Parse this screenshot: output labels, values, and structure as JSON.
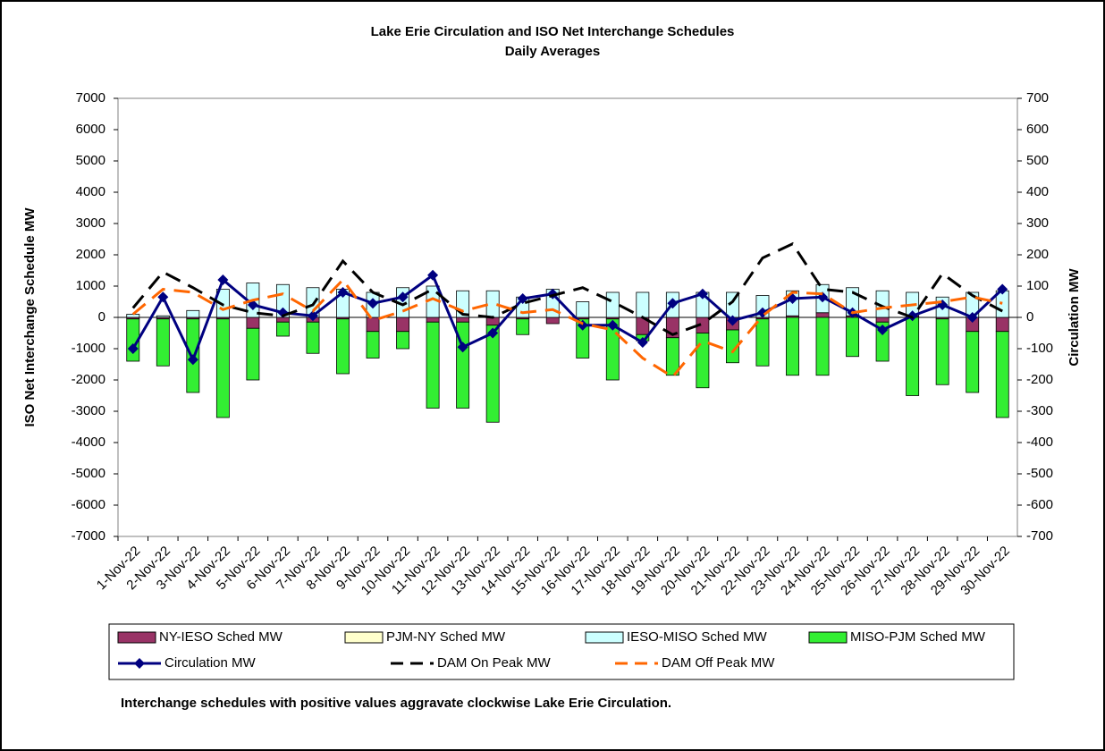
{
  "chart_data": {
    "type": "stacked-bar-line",
    "title": "Lake Erie Circulation and ISO Net Interchange Schedules",
    "subtitle": "Daily Averages",
    "y_label": "ISO Net Interchange Schedule MW",
    "y2_label": "Circulation MW",
    "note": "Interchange schedules with positive values aggravate clockwise Lake Erie Circulation.",
    "categories": [
      "1-Nov-22",
      "2-Nov-22",
      "3-Nov-22",
      "4-Nov-22",
      "5-Nov-22",
      "6-Nov-22",
      "7-Nov-22",
      "8-Nov-22",
      "9-Nov-22",
      "10-Nov-22",
      "11-Nov-22",
      "12-Nov-22",
      "13-Nov-22",
      "14-Nov-22",
      "15-Nov-22",
      "16-Nov-22",
      "17-Nov-22",
      "18-Nov-22",
      "19-Nov-22",
      "20-Nov-22",
      "21-Nov-22",
      "22-Nov-22",
      "23-Nov-22",
      "24-Nov-22",
      "25-Nov-22",
      "26-Nov-22",
      "27-Nov-22",
      "28-Nov-22",
      "29-Nov-22",
      "30-Nov-22"
    ],
    "ylim": [
      -7000,
      7000
    ],
    "yticks": [
      -7000,
      -6000,
      -5000,
      -4000,
      -3000,
      -2000,
      -1000,
      0,
      1000,
      2000,
      3000,
      4000,
      5000,
      6000,
      7000
    ],
    "y2lim": [
      -700,
      700
    ],
    "y2ticks": [
      -700,
      -600,
      -500,
      -400,
      -300,
      -200,
      -100,
      0,
      100,
      200,
      300,
      400,
      500,
      600,
      700
    ],
    "series": [
      {
        "name": "NY-IESO Sched MW",
        "kind": "bar",
        "color": "#993366",
        "values": [
          -50,
          -50,
          -50,
          -50,
          -350,
          -150,
          -150,
          -50,
          -450,
          -450,
          -150,
          -150,
          -250,
          -50,
          -200,
          -50,
          -50,
          -550,
          -650,
          -500,
          -400,
          -50,
          50,
          150,
          50,
          -150,
          50,
          -50,
          -450,
          -450
        ]
      },
      {
        "name": "PJM-NY Sched MW",
        "kind": "bar",
        "color": "#ffffcc",
        "values": [
          0,
          0,
          0,
          0,
          0,
          0,
          0,
          0,
          0,
          0,
          0,
          0,
          0,
          0,
          0,
          0,
          0,
          0,
          0,
          0,
          0,
          0,
          0,
          0,
          0,
          0,
          0,
          0,
          0,
          0
        ]
      },
      {
        "name": "IESO-MISO Sched MW",
        "kind": "bar",
        "color": "#ccffff",
        "values": [
          100,
          50,
          220,
          900,
          1100,
          1050,
          950,
          900,
          800,
          950,
          1000,
          850,
          850,
          650,
          900,
          500,
          800,
          800,
          800,
          800,
          800,
          700,
          800,
          900,
          900,
          850,
          750,
          650,
          800,
          850
        ]
      },
      {
        "name": "MISO-PJM Sched MW",
        "kind": "bar",
        "color": "#33ee33",
        "values": [
          -1350,
          -1500,
          -2350,
          -3150,
          -1650,
          -450,
          -1000,
          -1750,
          -850,
          -550,
          -2750,
          -2750,
          -3100,
          -500,
          0,
          -1250,
          -1950,
          -200,
          -1200,
          -1750,
          -1050,
          -1500,
          -1850,
          -1850,
          -1250,
          -1250,
          -2500,
          -2100,
          -1950,
          -2750
        ]
      },
      {
        "name": "Circulation MW",
        "kind": "line",
        "axis": "y2",
        "color": "#000080",
        "dash": "none",
        "markers": true,
        "values": [
          -100,
          65,
          -135,
          120,
          40,
          15,
          5,
          80,
          45,
          65,
          135,
          -95,
          -50,
          60,
          75,
          -25,
          -25,
          -80,
          45,
          75,
          -10,
          15,
          60,
          65,
          15,
          -40,
          5,
          40,
          0,
          90
        ]
      },
      {
        "name": "DAM On Peak MW",
        "kind": "line",
        "axis": "y2",
        "color": "#000000",
        "dash": "18 10",
        "markers": false,
        "values": [
          30,
          145,
          95,
          40,
          15,
          5,
          40,
          180,
          80,
          40,
          90,
          10,
          0,
          45,
          70,
          95,
          50,
          0,
          -55,
          -20,
          50,
          190,
          235,
          90,
          80,
          35,
          0,
          140,
          70,
          20
        ]
      },
      {
        "name": "DAM Off Peak MW",
        "kind": "line",
        "axis": "y2",
        "color": "#ff6600",
        "dash": "18 10",
        "markers": false,
        "values": [
          10,
          90,
          80,
          25,
          55,
          75,
          20,
          120,
          -10,
          20,
          60,
          20,
          45,
          15,
          25,
          -20,
          -40,
          -130,
          -190,
          -75,
          -110,
          5,
          80,
          75,
          15,
          30,
          40,
          50,
          65,
          45
        ]
      }
    ]
  }
}
